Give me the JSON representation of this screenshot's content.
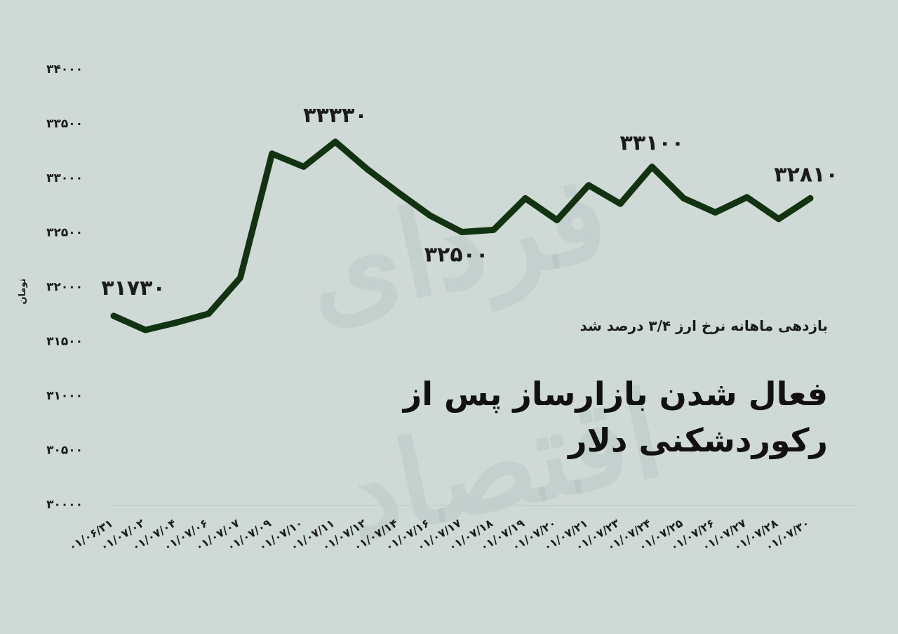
{
  "headline": {
    "line1": "فعال شدن بازارساز پس از",
    "line2": "رکوردشکنی دلار"
  },
  "subhead": "بازدهی ماهانه نرخ ارز ۳/۴ درصد شد",
  "watermark": "فردای اقتصاد",
  "colors": {
    "background": "#cfd9d6",
    "line": "#12330f",
    "text": "#1b1b1b"
  },
  "chart_data": {
    "type": "line",
    "title": "",
    "xlabel": "",
    "ylabel": "تومان",
    "ylim": [
      30000,
      34000
    ],
    "yticks": [
      30000,
      30500,
      31000,
      31500,
      32000,
      32500,
      33000,
      33500,
      34000
    ],
    "ytick_labels": [
      "۳۰۰۰۰",
      "۳۰۵۰۰",
      "۳۱۰۰۰",
      "۳۱۵۰۰",
      "۳۲۰۰۰",
      "۳۲۵۰۰",
      "۳۳۰۰۰",
      "۳۳۵۰۰",
      "۳۴۰۰۰"
    ],
    "categories": [
      "۰۱/۰۶/۳۱",
      "۰۱/۰۷/۰۲",
      "۰۱/۰۷/۰۴",
      "۰۱/۰۷/۰۶",
      "۰۱/۰۷/۰۷",
      "۰۱/۰۷/۰۹",
      "۰۱/۰۷/۱۰",
      "۰۱/۰۷/۱۱",
      "۰۱/۰۷/۱۲",
      "۰۱/۰۷/۱۴",
      "۰۱/۰۷/۱۶",
      "۰۱/۰۷/۱۷",
      "۰۱/۰۷/۱۸",
      "۰۱/۰۷/۱۹",
      "۰۱/۰۷/۲۰",
      "۰۱/۰۷/۲۱",
      "۰۱/۰۷/۲۳",
      "۰۱/۰۷/۲۴",
      "۰۱/۰۷/۲۵",
      "۰۱/۰۷/۲۶",
      "۰۱/۰۷/۲۷",
      "۰۱/۰۷/۲۸",
      "۰۱/۰۷/۳۰"
    ],
    "values": [
      31730,
      31600,
      31670,
      31750,
      32080,
      33220,
      33100,
      33330,
      33080,
      32860,
      32650,
      32500,
      32520,
      32810,
      32610,
      32930,
      32760,
      33100,
      32810,
      32680,
      32820,
      32620,
      32810
    ],
    "data_labels": [
      {
        "index": 0,
        "text": "۳۱۷۳۰"
      },
      {
        "index": 7,
        "text": "۳۳۳۳۰"
      },
      {
        "index": 11,
        "text": "۳۲۵۰۰"
      },
      {
        "index": 17,
        "text": "۳۳۱۰۰"
      },
      {
        "index": 22,
        "text": "۳۲۸۱۰"
      }
    ],
    "grid": false,
    "legend": "none"
  }
}
